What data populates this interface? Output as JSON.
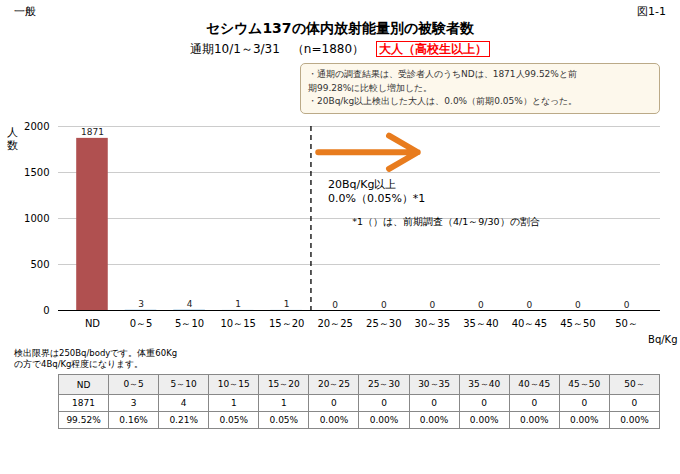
{
  "chart_data": {
    "type": "bar",
    "header_left": "一般",
    "header_right": "図1-1",
    "title": "セシウム137の体内放射能量別の被験者数",
    "subtitle": "通期10/1～3/31　（n=1880）　",
    "subtitle_highlight": {
      "text": "大人（高校生以上）",
      "color": "red"
    },
    "ylabel": [
      "人",
      "数"
    ],
    "xlabel": "Bq/Kg",
    "categories": [
      "ND",
      "0～5",
      "5～10",
      "10～15",
      "15～20",
      "20～25",
      "25～30",
      "30～35",
      "35～40",
      "40～45",
      "45～50",
      "50～"
    ],
    "values": [
      1871,
      3,
      4,
      1,
      1,
      0,
      0,
      0,
      0,
      0,
      0,
      0
    ],
    "colors": [
      "#b05050",
      "#7bafd4",
      "#7bafd4",
      "#7bafd4",
      "#7bafd4",
      "#7bafd4",
      "#7bafd4",
      "#7bafd4",
      "#7bafd4",
      "#7bafd4",
      "#7bafd4",
      "#7bafd4"
    ],
    "ylim": [
      0,
      2000
    ],
    "yticks": [
      0,
      500,
      1000,
      1500,
      2000
    ],
    "grid": true,
    "data_labels": true,
    "threshold": {
      "after": "15～20",
      "arrow_color": "#e87c1e",
      "annotations": [
        "20Bq/Kg以上",
        "0.0%（0.05%）*1"
      ]
    },
    "note": "*1（）は、前期調査（4/1～9/30）の割合",
    "info_box": {
      "lines": [
        "・通期の調査結果は、受診者人のうちNDは、1871人99.52%と前",
        "期99.28%に比較し増加した。",
        "・20Bq/kg以上検出した大人は、0.0%（前期0.05%）となった。"
      ],
      "color": "#fdf8ec",
      "edge_color": "#bbaa88"
    },
    "footer": [
      "検出限界は250Bq/bodyです。体重60Kg",
      "の方で4Bq/Kg程度になります。"
    ],
    "table": [
      [
        "ND",
        "0～5",
        "5～10",
        "10～15",
        "15～20",
        "20～25",
        "25～30",
        "30～35",
        "35～40",
        "40～45",
        "45～50",
        "50～"
      ],
      [
        "1871",
        "3",
        "4",
        "1",
        "1",
        "0",
        "0",
        "0",
        "0",
        "0",
        "0",
        "0"
      ],
      [
        "99.52%",
        "0.16%",
        "0.21%",
        "0.05%",
        "0.05%",
        "0.00%",
        "0.00%",
        "0.00%",
        "0.00%",
        "0.00%",
        "0.00%",
        "0.00%"
      ]
    ]
  }
}
